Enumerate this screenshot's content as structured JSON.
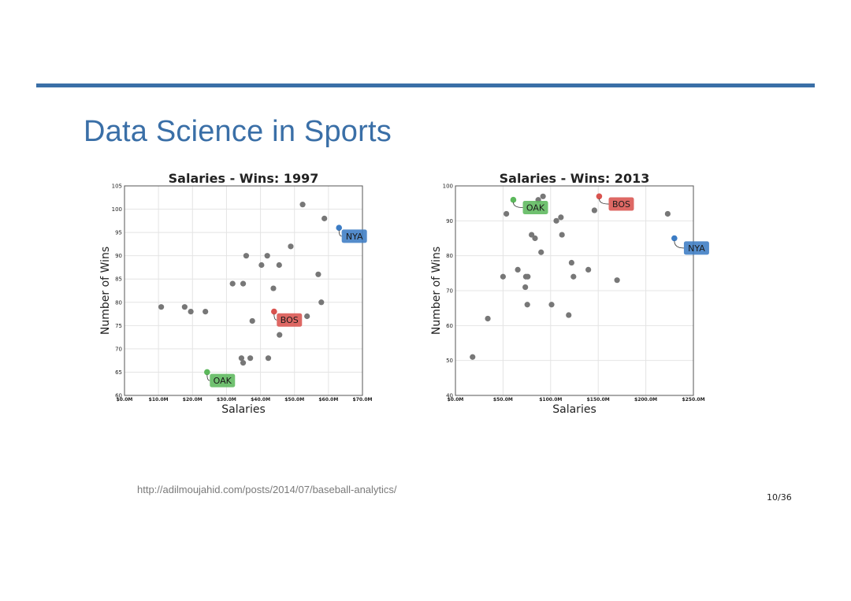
{
  "slide": {
    "title": "Data Science in Sports",
    "source_url": "http://adilmoujahid.com/posts/2014/07/baseball-analytics/",
    "page_number": "10/36"
  },
  "chart_data": [
    {
      "type": "scatter",
      "title": "Salaries - Wins: 1997",
      "xlabel": "Salaries",
      "ylabel": "Number of Wins",
      "xlim": [
        0,
        70
      ],
      "ylim": [
        60,
        105
      ],
      "x_ticks": [
        0,
        10,
        20,
        30,
        40,
        50,
        60,
        70
      ],
      "x_tick_labels": [
        "$0.0M",
        "$10.0M",
        "$20.0M",
        "$30.0M",
        "$40.0M",
        "$50.0M",
        "$60.0M",
        "$70.0M"
      ],
      "y_ticks": [
        60,
        65,
        70,
        75,
        80,
        85,
        90,
        95,
        100,
        105
      ],
      "y_tick_labels": [
        "60",
        "65",
        "70",
        "75",
        "80",
        "85",
        "90",
        "95",
        "100",
        "105"
      ],
      "grid": true,
      "points": [
        {
          "x": 10.8,
          "y": 79
        },
        {
          "x": 17.7,
          "y": 79
        },
        {
          "x": 19.5,
          "y": 78
        },
        {
          "x": 23.8,
          "y": 78
        },
        {
          "x": 31.8,
          "y": 84
        },
        {
          "x": 34.9,
          "y": 84
        },
        {
          "x": 35.8,
          "y": 90
        },
        {
          "x": 34.4,
          "y": 68
        },
        {
          "x": 34.9,
          "y": 67
        },
        {
          "x": 37.0,
          "y": 68
        },
        {
          "x": 37.6,
          "y": 76
        },
        {
          "x": 40.3,
          "y": 88
        },
        {
          "x": 42.0,
          "y": 90
        },
        {
          "x": 42.3,
          "y": 68
        },
        {
          "x": 43.8,
          "y": 83
        },
        {
          "x": 45.5,
          "y": 88
        },
        {
          "x": 45.6,
          "y": 73
        },
        {
          "x": 48.9,
          "y": 92
        },
        {
          "x": 52.4,
          "y": 101
        },
        {
          "x": 53.7,
          "y": 77
        },
        {
          "x": 57.0,
          "y": 86
        },
        {
          "x": 57.9,
          "y": 80
        },
        {
          "x": 58.8,
          "y": 98
        }
      ],
      "highlights": [
        {
          "team": "NYA",
          "x": 63.1,
          "y": 96,
          "color": "#3c7cc4",
          "label_dx": 0.8,
          "label_dy": -1.8
        },
        {
          "team": "BOS",
          "x": 44.0,
          "y": 78,
          "color": "#d9534f",
          "label_dx": 0.8,
          "label_dy": -1.8
        },
        {
          "team": "OAK",
          "x": 24.3,
          "y": 65,
          "color": "#5cb85c",
          "label_dx": 0.8,
          "label_dy": -1.8
        }
      ],
      "point_color": "#777777"
    },
    {
      "type": "scatter",
      "title": "Salaries - Wins: 2013",
      "xlabel": "Salaries",
      "ylabel": "Number of Wins",
      "xlim": [
        0,
        250
      ],
      "ylim": [
        40,
        100
      ],
      "x_ticks": [
        0,
        50,
        100,
        150,
        200,
        250
      ],
      "x_tick_labels": [
        "$0.0M",
        "$50.0M",
        "$100.0M",
        "$150.0M",
        "$200.0M",
        "$250.0M"
      ],
      "y_ticks": [
        40,
        50,
        60,
        70,
        80,
        90,
        100
      ],
      "y_tick_labels": [
        "40",
        "50",
        "60",
        "70",
        "80",
        "90",
        "100"
      ],
      "grid": true,
      "points": [
        {
          "x": 18.0,
          "y": 51
        },
        {
          "x": 34.0,
          "y": 62
        },
        {
          "x": 50.0,
          "y": 74
        },
        {
          "x": 53.5,
          "y": 92
        },
        {
          "x": 65.5,
          "y": 76
        },
        {
          "x": 73.4,
          "y": 71
        },
        {
          "x": 74.0,
          "y": 74
        },
        {
          "x": 76.0,
          "y": 74
        },
        {
          "x": 75.5,
          "y": 66
        },
        {
          "x": 80.0,
          "y": 86
        },
        {
          "x": 83.6,
          "y": 85
        },
        {
          "x": 87.0,
          "y": 96
        },
        {
          "x": 90.0,
          "y": 81
        },
        {
          "x": 92.0,
          "y": 97
        },
        {
          "x": 101.0,
          "y": 66
        },
        {
          "x": 106.0,
          "y": 90
        },
        {
          "x": 110.8,
          "y": 91
        },
        {
          "x": 111.9,
          "y": 86
        },
        {
          "x": 119.0,
          "y": 63
        },
        {
          "x": 122.0,
          "y": 78
        },
        {
          "x": 124.0,
          "y": 74
        },
        {
          "x": 139.6,
          "y": 76
        },
        {
          "x": 146.0,
          "y": 93
        },
        {
          "x": 169.8,
          "y": 73
        },
        {
          "x": 223.0,
          "y": 92
        }
      ],
      "highlights": [
        {
          "team": "NYA",
          "x": 230.0,
          "y": 85,
          "color": "#3c7cc4",
          "label_dx": 10,
          "label_dy": -2.8
        },
        {
          "team": "BOS",
          "x": 151.0,
          "y": 97,
          "color": "#d9534f",
          "label_dx": 10,
          "label_dy": -2.2
        },
        {
          "team": "OAK",
          "x": 60.8,
          "y": 96,
          "color": "#5cb85c",
          "label_dx": 10,
          "label_dy": -2.2
        }
      ],
      "point_color": "#777777"
    }
  ]
}
